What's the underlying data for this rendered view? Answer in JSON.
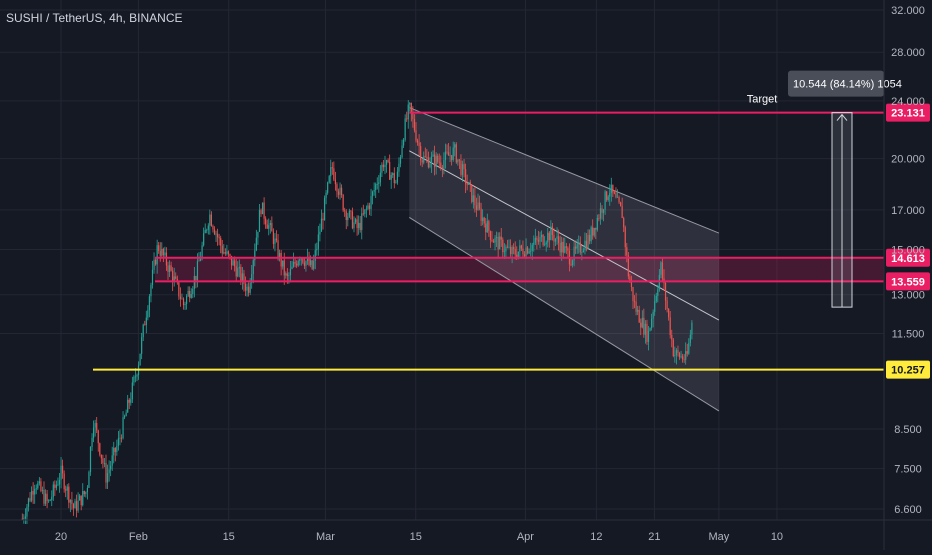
{
  "chart_data": {
    "type": "candlestick",
    "title": "SUSHI / TetherUS, 4h, BINANCE",
    "x_ticks": [
      "20",
      "Feb",
      "15",
      "Mar",
      "15",
      "Apr",
      "12",
      "21",
      "May",
      "10"
    ],
    "y_ticks": [
      "32.000",
      "28.000",
      "24.000",
      "20.000",
      "17.000",
      "15.000",
      "13.000",
      "11.500",
      "8.500",
      "7.500",
      "6.600"
    ],
    "ylim": [
      6.3,
      33.0
    ],
    "y_scale": "log",
    "grid": true,
    "levels": [
      {
        "price": 23.131,
        "label": "23.131",
        "color": "#e91e63",
        "role": "target"
      },
      {
        "price": 14.613,
        "label": "14.613",
        "color": "#e91e63",
        "role": "zone-top"
      },
      {
        "price": 13.559,
        "label": "13.559",
        "color": "#e91e63",
        "role": "zone-bottom"
      },
      {
        "price": 10.257,
        "label": "10.257",
        "color": "#ffeb3b",
        "role": "support"
      }
    ],
    "annotations": {
      "target_label": "Target",
      "measure_label": "10.544 (84.14%) 1054"
    },
    "price_path": [
      [
        "Jan 14",
        6.4
      ],
      [
        "Jan 16",
        7.2
      ],
      [
        "Jan 18",
        6.7
      ],
      [
        "Jan 20",
        7.4
      ],
      [
        "Jan 22",
        6.6
      ],
      [
        "Jan 24",
        7.0
      ],
      [
        "Jan 25",
        8.8
      ],
      [
        "Jan 27",
        7.3
      ],
      [
        "Jan 29",
        8.2
      ],
      [
        "Jan 31",
        9.6
      ],
      [
        "Feb 1",
        10.5
      ],
      [
        "Feb 2",
        12.0
      ],
      [
        "Feb 3",
        13.5
      ],
      [
        "Feb 4",
        15.2
      ],
      [
        "Feb 6",
        14.0
      ],
      [
        "Feb 8",
        12.6
      ],
      [
        "Feb 10",
        13.9
      ],
      [
        "Feb 12",
        16.8
      ],
      [
        "Feb 14",
        15.0
      ],
      [
        "Feb 16",
        14.2
      ],
      [
        "Feb 18",
        13.2
      ],
      [
        "Feb 20",
        17.2
      ],
      [
        "Feb 22",
        15.5
      ],
      [
        "Feb 24",
        13.6
      ],
      [
        "Feb 26",
        14.8
      ],
      [
        "Feb 28",
        14.1
      ],
      [
        "Mar 2",
        19.5
      ],
      [
        "Mar 4",
        17.0
      ],
      [
        "Mar 6",
        16.0
      ],
      [
        "Mar 8",
        17.5
      ],
      [
        "Mar 10",
        19.8
      ],
      [
        "Mar 12",
        18.5
      ],
      [
        "Mar 13",
        21.5
      ],
      [
        "Mar 14",
        23.5
      ],
      [
        "Mar 16",
        20.0
      ],
      [
        "Mar 19",
        19.8
      ],
      [
        "Mar 21",
        20.5
      ],
      [
        "Mar 24",
        17.5
      ],
      [
        "Mar 27",
        15.5
      ],
      [
        "Mar 30",
        14.8
      ],
      [
        "Apr 2",
        15.2
      ],
      [
        "Apr 5",
        15.8
      ],
      [
        "Apr 8",
        14.6
      ],
      [
        "Apr 11",
        15.6
      ],
      [
        "Apr 14",
        18.2
      ],
      [
        "Apr 16",
        16.8
      ],
      [
        "Apr 17",
        13.8
      ],
      [
        "Apr 18",
        12.5
      ],
      [
        "Apr 20",
        11.4
      ],
      [
        "Apr 22",
        14.2
      ],
      [
        "Apr 24",
        10.8
      ],
      [
        "Apr 26",
        10.6
      ],
      [
        "Apr 27",
        12.2
      ]
    ]
  }
}
